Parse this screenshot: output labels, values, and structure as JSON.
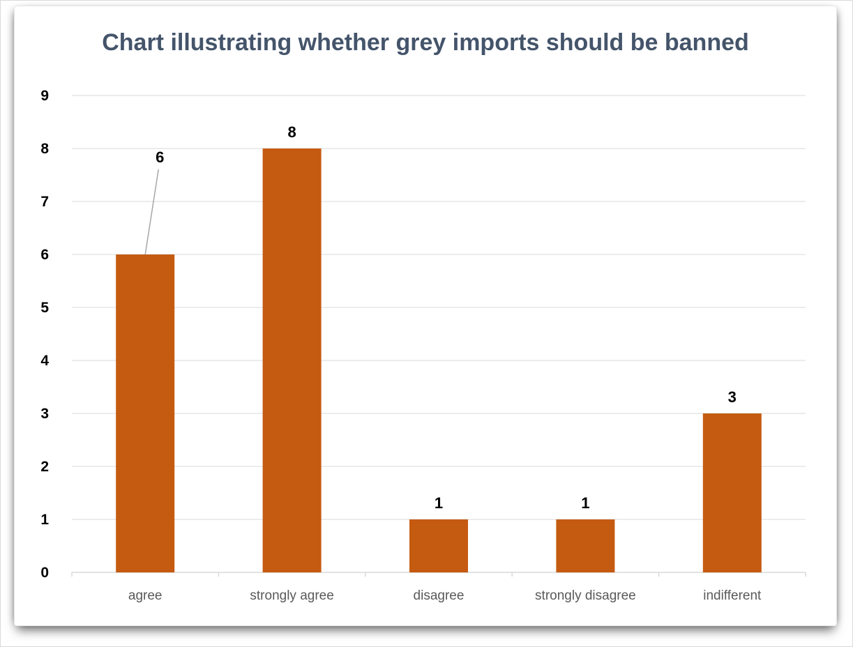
{
  "chart_data": {
    "type": "bar",
    "title": "Chart illustrating whether grey imports should be banned",
    "categories": [
      "agree",
      "strongly agree",
      "disagree",
      "strongly disagree",
      "indifferent"
    ],
    "values": [
      6,
      8,
      1,
      1,
      3
    ],
    "data_labels": [
      "6",
      "8",
      "1",
      "1",
      "3"
    ],
    "y_ticks": [
      "0",
      "1",
      "2",
      "3",
      "4",
      "5",
      "6",
      "7",
      "8",
      "9"
    ],
    "ylim": [
      0,
      9
    ],
    "xlabel": "",
    "ylabel": "",
    "grid": true,
    "legend": "none",
    "colors": {
      "bar": "#c55a11",
      "title": "#44546a",
      "gridline": "#d9d9d9",
      "axis_label": "#595959",
      "leader_line": "#a6a6a6"
    }
  }
}
